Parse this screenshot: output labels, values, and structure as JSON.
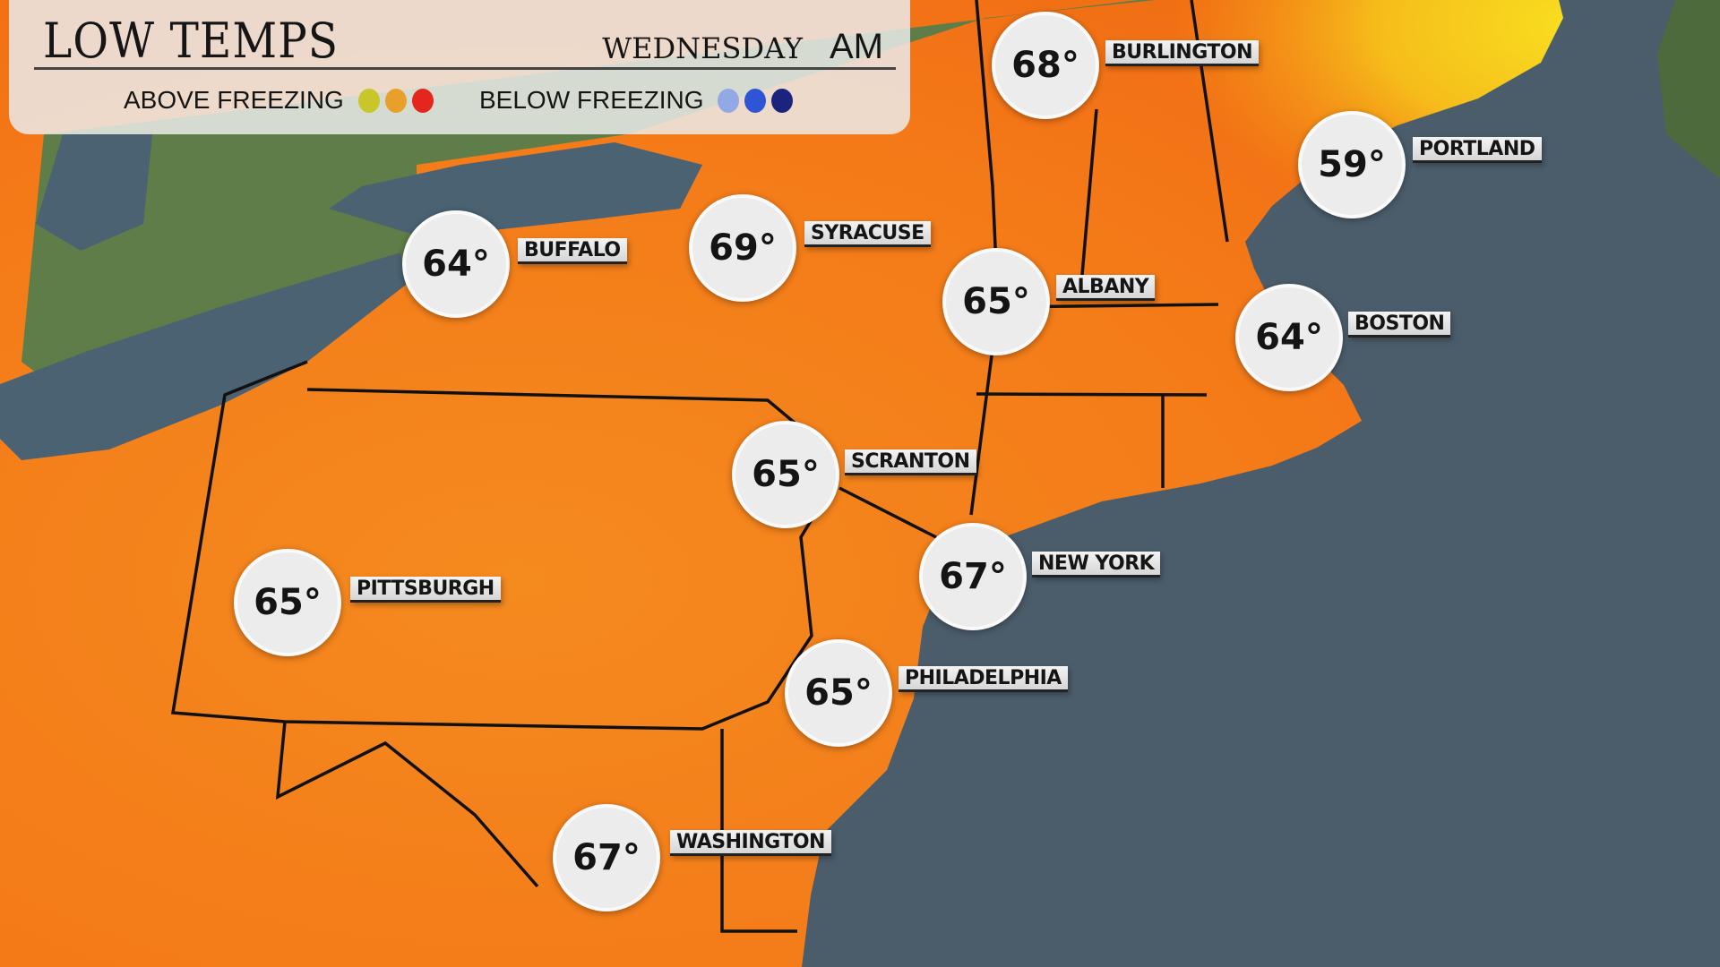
{
  "header": {
    "title": "LOW TEMPS",
    "day": "WEDNESDAY",
    "period": "AM",
    "legend_above": "ABOVE FREEZING",
    "legend_below": "BELOW FREEZING",
    "above_colors": [
      "#c8c629",
      "#e8a02a",
      "#e5261c"
    ],
    "below_colors": [
      "#92a9e6",
      "#2f55d6",
      "#1b237f"
    ]
  },
  "colors": {
    "ocean": "#4b5d6b",
    "land_warm": "#f47d1b",
    "land_cool": "#f5c01a",
    "land_canada": "#5f7d48",
    "lake": "#4a6272"
  },
  "cities": [
    {
      "name": "BURLINGTON",
      "temp": "68°"
    },
    {
      "name": "PORTLAND",
      "temp": "59°"
    },
    {
      "name": "BUFFALO",
      "temp": "64°"
    },
    {
      "name": "SYRACUSE",
      "temp": "69°"
    },
    {
      "name": "ALBANY",
      "temp": "65°"
    },
    {
      "name": "BOSTON",
      "temp": "64°"
    },
    {
      "name": "SCRANTON",
      "temp": "65°"
    },
    {
      "name": "PITTSBURGH",
      "temp": "65°"
    },
    {
      "name": "NEW YORK",
      "temp": "67°"
    },
    {
      "name": "PHILADELPHIA",
      "temp": "65°"
    },
    {
      "name": "WASHINGTON",
      "temp": "67°"
    }
  ]
}
